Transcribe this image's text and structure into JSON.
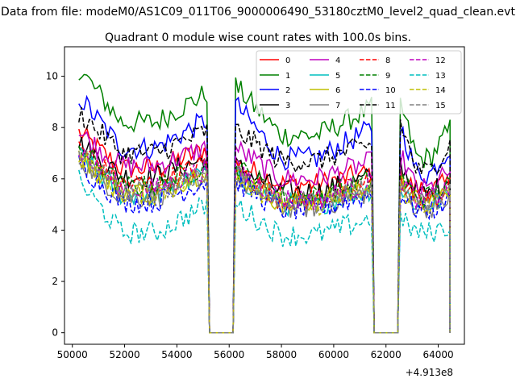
{
  "figure": {
    "suptitle": "Data from file: modeM0/AS1C09_011T06_9000006490_53180cztM0_level2_quad_clean.evt",
    "offset_label": "+4.913e8"
  },
  "chart_data": {
    "type": "line",
    "title": "Quadrant 0 module wise count rates with 100.0s bins.",
    "xlabel": "",
    "ylabel": "",
    "xlim": [
      49700,
      65000
    ],
    "ylim": [
      -0.45,
      11.15
    ],
    "x_offset_note": "+4.913e8",
    "x_ticks": [
      50000,
      52000,
      54000,
      56000,
      58000,
      60000,
      62000,
      64000
    ],
    "y_ticks": [
      0,
      2,
      4,
      6,
      8,
      10
    ],
    "grid": false,
    "legend": {
      "placement": "top-right",
      "columns": 4
    },
    "segments": [
      {
        "t0": 50250,
        "t1": 55150,
        "gap_end": 55250
      },
      {
        "t0": 56250,
        "t1": 61450,
        "gap_end": 61550
      },
      {
        "t0": 62550,
        "t1": 64450,
        "gap_end": 64450
      }
    ],
    "series": [
      {
        "name": "0",
        "color": "#ff0000",
        "dash": "solid",
        "levels": [
          7.8,
          6.4,
          6.6,
          5.8,
          6.0,
          5.6
        ]
      },
      {
        "name": "1",
        "color": "#008000",
        "dash": "solid",
        "levels": [
          10.3,
          8.2,
          9.6,
          7.7,
          8.9,
          6.8
        ]
      },
      {
        "name": "2",
        "color": "#0000ff",
        "dash": "solid",
        "levels": [
          9.2,
          7.2,
          8.9,
          6.8,
          8.1,
          6.2
        ]
      },
      {
        "name": "3",
        "color": "#000000",
        "dash": "solid",
        "levels": [
          7.4,
          6.1,
          6.5,
          5.5,
          6.6,
          5.4
        ]
      },
      {
        "name": "4",
        "color": "#bf00bf",
        "dash": "solid",
        "levels": [
          7.8,
          6.5,
          7.2,
          6.0,
          6.9,
          5.6
        ]
      },
      {
        "name": "5",
        "color": "#00bfbf",
        "dash": "solid",
        "levels": [
          6.9,
          5.4,
          6.1,
          5.0,
          5.6,
          5.0
        ]
      },
      {
        "name": "6",
        "color": "#bfbf00",
        "dash": "solid",
        "levels": [
          7.0,
          5.5,
          6.2,
          5.1,
          5.8,
          5.1
        ]
      },
      {
        "name": "7",
        "color": "#808080",
        "dash": "solid",
        "levels": [
          6.8,
          5.3,
          6.0,
          4.9,
          5.5,
          4.9
        ]
      },
      {
        "name": "8",
        "color": "#ff0000",
        "dash": "dashed",
        "levels": [
          7.3,
          5.8,
          6.4,
          5.2,
          6.0,
          5.2
        ]
      },
      {
        "name": "9",
        "color": "#008000",
        "dash": "dashed",
        "levels": [
          7.2,
          5.7,
          6.5,
          5.3,
          6.1,
          5.3
        ]
      },
      {
        "name": "10",
        "color": "#0000ff",
        "dash": "dashed",
        "levels": [
          6.6,
          5.1,
          5.9,
          4.8,
          5.4,
          4.8
        ]
      },
      {
        "name": "11",
        "color": "#000000",
        "dash": "dashed",
        "levels": [
          8.6,
          7.0,
          7.9,
          6.7,
          8.2,
          6.3
        ]
      },
      {
        "name": "12",
        "color": "#bf00bf",
        "dash": "dashed",
        "levels": [
          7.1,
          5.6,
          6.4,
          5.2,
          6.0,
          5.2
        ]
      },
      {
        "name": "13",
        "color": "#00bfbf",
        "dash": "dashed",
        "levels": [
          5.9,
          3.9,
          5.0,
          3.8,
          4.4,
          3.9
        ]
      },
      {
        "name": "14",
        "color": "#bfbf00",
        "dash": "dashed",
        "levels": [
          6.9,
          5.4,
          6.2,
          5.0,
          5.7,
          5.0
        ]
      },
      {
        "name": "15",
        "color": "#808080",
        "dash": "dashed",
        "levels": [
          7.0,
          5.5,
          6.3,
          5.1,
          5.8,
          5.1
        ]
      }
    ]
  }
}
